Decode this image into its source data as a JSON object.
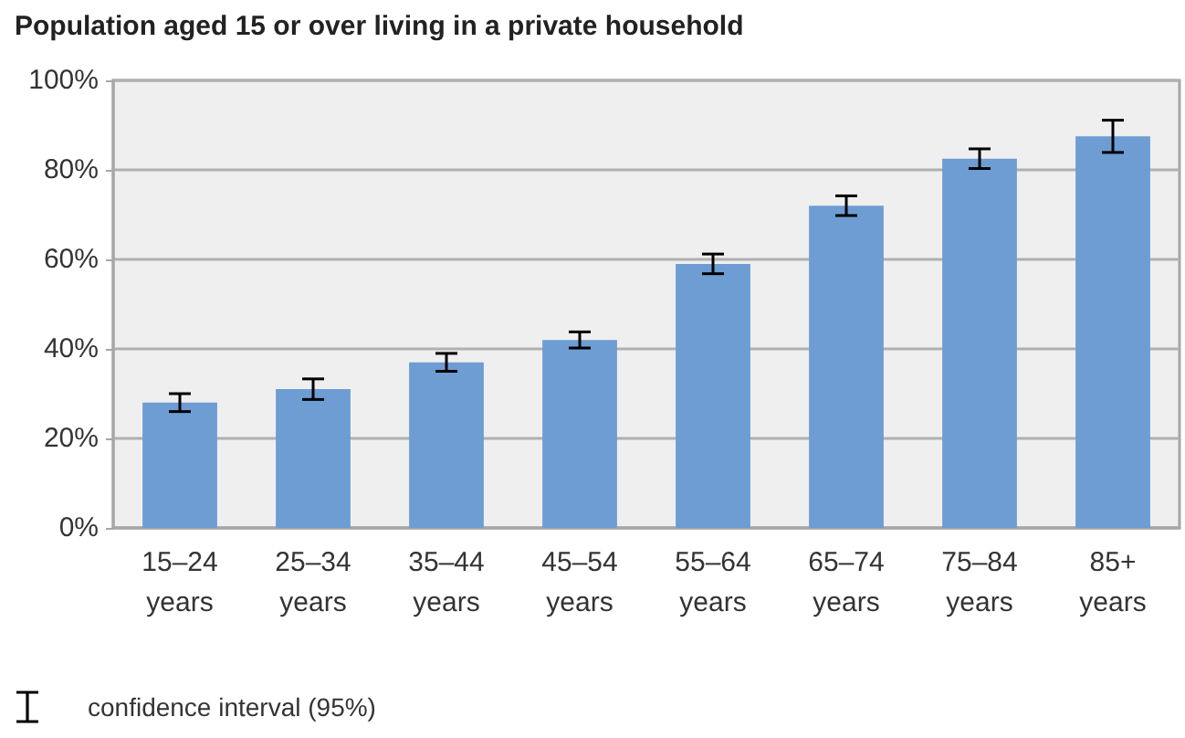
{
  "chart_data": {
    "type": "bar",
    "title": "Population aged 15 or over living in a private household",
    "categories": [
      "15–24\nyears",
      "25–34\nyears",
      "35–44\nyears",
      "45–54\nyears",
      "55–64\nyears",
      "65–74\nyears",
      "75–84\nyears",
      "85+\nyears"
    ],
    "values": [
      28,
      31,
      37,
      42,
      59,
      72,
      82.5,
      87.5
    ],
    "errors": [
      2,
      2.3,
      2,
      1.8,
      2.2,
      2.2,
      2.2,
      3.6
    ],
    "color": "#6d9dd3",
    "ylim": [
      0,
      100
    ],
    "yticks": [
      {
        "value": 0,
        "label": "0%"
      },
      {
        "value": 20,
        "label": "20%"
      },
      {
        "value": 40,
        "label": "40%"
      },
      {
        "value": 60,
        "label": "60%"
      },
      {
        "value": 80,
        "label": "80%"
      },
      {
        "value": 100,
        "label": "100%"
      }
    ],
    "grid": "y",
    "annotations": [
      "confidence interval (95%)"
    ]
  }
}
